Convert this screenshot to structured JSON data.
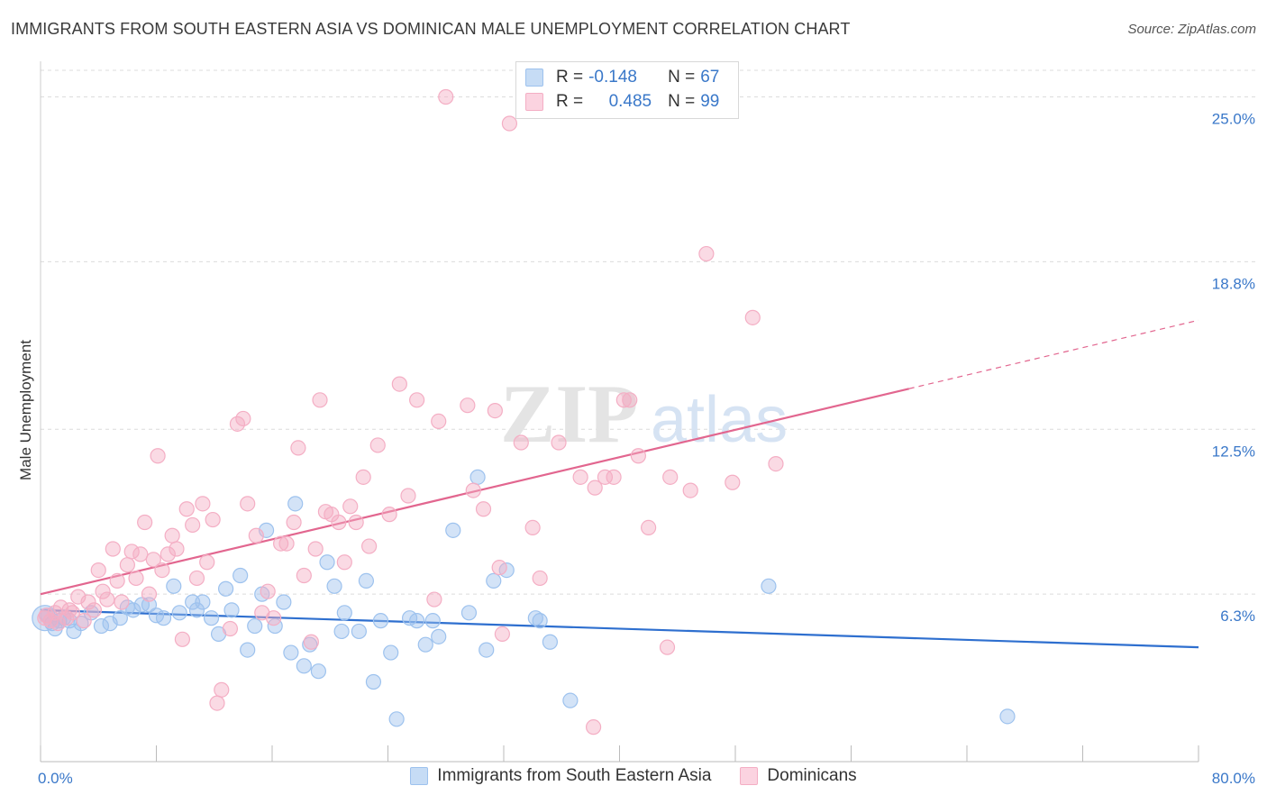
{
  "header": {
    "title": "IMMIGRANTS FROM SOUTH EASTERN ASIA VS DOMINICAN MALE UNEMPLOYMENT CORRELATION CHART",
    "source": "Source: ZipAtlas.com"
  },
  "watermark": {
    "zip": "ZIP",
    "atlas": "atlas"
  },
  "legend_stats": [
    {
      "r_label": "R =",
      "r_value": "-0.148",
      "n_label": "N =",
      "n_value": "67",
      "color": "#9dc2ee"
    },
    {
      "r_label": "R =",
      "r_value": "0.485",
      "n_label": "N =",
      "n_value": "99",
      "color": "#f4aec4"
    }
  ],
  "chart_data": {
    "type": "scatter",
    "title": "IMMIGRANTS FROM SOUTH EASTERN ASIA VS DOMINICAN MALE UNEMPLOYMENT CORRELATION CHART",
    "xlabel": "",
    "ylabel": "Male Unemployment",
    "xlim": [
      0,
      80
    ],
    "ylim": [
      0,
      26
    ],
    "x_tick_labels": [
      "0.0%",
      "80.0%"
    ],
    "y_ticks": [
      6.3,
      12.5,
      18.8,
      25.0
    ],
    "y_tick_labels": [
      "6.3%",
      "12.5%",
      "18.8%",
      "25.0%"
    ],
    "grid": true,
    "legend_position": "bottom",
    "series": [
      {
        "name": "Immigrants from South Eastern Asia",
        "color": "#9dc2ee",
        "line_color": "#2e6fcf",
        "trend": {
          "x": [
            0,
            80
          ],
          "y": [
            5.7,
            4.3
          ],
          "dashed_from": null
        },
        "points": [
          [
            0.5,
            5.5
          ],
          [
            0.8,
            5.2
          ],
          [
            1.0,
            5.0
          ],
          [
            1.3,
            5.3
          ],
          [
            1.6,
            5.4
          ],
          [
            2.0,
            5.3
          ],
          [
            2.3,
            4.9
          ],
          [
            2.8,
            5.2
          ],
          [
            3.5,
            5.6
          ],
          [
            4.2,
            5.1
          ],
          [
            4.8,
            5.2
          ],
          [
            5.5,
            5.4
          ],
          [
            6.0,
            5.8
          ],
          [
            6.4,
            5.7
          ],
          [
            7.0,
            5.9
          ],
          [
            7.5,
            5.9
          ],
          [
            8.0,
            5.5
          ],
          [
            8.5,
            5.4
          ],
          [
            9.2,
            6.6
          ],
          [
            9.6,
            5.6
          ],
          [
            10.5,
            6.0
          ],
          [
            10.8,
            5.7
          ],
          [
            11.2,
            6.0
          ],
          [
            11.8,
            5.4
          ],
          [
            12.3,
            4.8
          ],
          [
            12.8,
            6.5
          ],
          [
            13.2,
            5.7
          ],
          [
            13.8,
            7.0
          ],
          [
            14.3,
            4.2
          ],
          [
            14.8,
            5.1
          ],
          [
            15.3,
            6.3
          ],
          [
            15.6,
            8.7
          ],
          [
            16.2,
            5.1
          ],
          [
            16.8,
            6.0
          ],
          [
            17.3,
            4.1
          ],
          [
            17.6,
            9.7
          ],
          [
            18.2,
            3.6
          ],
          [
            18.6,
            4.4
          ],
          [
            19.2,
            3.4
          ],
          [
            19.8,
            7.5
          ],
          [
            20.3,
            6.6
          ],
          [
            20.8,
            4.9
          ],
          [
            21.0,
            5.6
          ],
          [
            22.0,
            4.9
          ],
          [
            22.5,
            6.8
          ],
          [
            23.0,
            3.0
          ],
          [
            23.5,
            5.3
          ],
          [
            24.2,
            4.1
          ],
          [
            24.6,
            1.6
          ],
          [
            25.5,
            5.4
          ],
          [
            26.0,
            5.3
          ],
          [
            26.6,
            4.4
          ],
          [
            27.1,
            5.3
          ],
          [
            27.5,
            4.7
          ],
          [
            28.5,
            8.7
          ],
          [
            29.6,
            5.6
          ],
          [
            30.2,
            10.7
          ],
          [
            30.8,
            4.2
          ],
          [
            31.3,
            6.8
          ],
          [
            32.2,
            7.2
          ],
          [
            34.2,
            5.4
          ],
          [
            34.5,
            5.3
          ],
          [
            35.2,
            4.5
          ],
          [
            36.6,
            2.3
          ],
          [
            50.3,
            6.6
          ],
          [
            66.8,
            1.7
          ],
          [
            0.3,
            5.4
          ]
        ]
      },
      {
        "name": "Dominicans",
        "color": "#f4aec4",
        "line_color": "#e2668f",
        "trend": {
          "x": [
            0,
            80
          ],
          "y": [
            6.3,
            16.6
          ],
          "dashed_from": 60
        },
        "points": [
          [
            0.4,
            5.5
          ],
          [
            0.7,
            5.3
          ],
          [
            1.0,
            5.6
          ],
          [
            1.4,
            5.8
          ],
          [
            1.8,
            5.4
          ],
          [
            2.2,
            5.6
          ],
          [
            2.6,
            6.2
          ],
          [
            3.0,
            5.3
          ],
          [
            3.3,
            6.0
          ],
          [
            3.7,
            5.7
          ],
          [
            4.0,
            7.2
          ],
          [
            4.3,
            6.4
          ],
          [
            4.6,
            6.1
          ],
          [
            5.0,
            8.0
          ],
          [
            5.3,
            6.8
          ],
          [
            5.6,
            6.0
          ],
          [
            6.0,
            7.4
          ],
          [
            6.3,
            7.9
          ],
          [
            6.6,
            6.9
          ],
          [
            6.9,
            7.8
          ],
          [
            7.2,
            9.0
          ],
          [
            7.5,
            6.3
          ],
          [
            7.8,
            7.6
          ],
          [
            8.1,
            11.5
          ],
          [
            8.4,
            7.2
          ],
          [
            8.8,
            7.8
          ],
          [
            9.1,
            8.5
          ],
          [
            9.4,
            8.0
          ],
          [
            9.8,
            4.6
          ],
          [
            10.1,
            9.5
          ],
          [
            10.5,
            8.9
          ],
          [
            10.8,
            6.9
          ],
          [
            11.2,
            9.7
          ],
          [
            11.5,
            7.5
          ],
          [
            11.9,
            9.1
          ],
          [
            12.5,
            2.7
          ],
          [
            12.2,
            2.2
          ],
          [
            13.1,
            5.0
          ],
          [
            13.6,
            12.7
          ],
          [
            14.0,
            12.9
          ],
          [
            14.3,
            9.7
          ],
          [
            14.9,
            8.5
          ],
          [
            15.3,
            5.6
          ],
          [
            15.7,
            6.4
          ],
          [
            16.1,
            5.4
          ],
          [
            16.6,
            8.2
          ],
          [
            17.0,
            8.2
          ],
          [
            17.5,
            9.0
          ],
          [
            17.8,
            11.8
          ],
          [
            18.2,
            7.0
          ],
          [
            18.7,
            4.5
          ],
          [
            19.0,
            8.0
          ],
          [
            19.3,
            13.6
          ],
          [
            19.7,
            9.4
          ],
          [
            20.1,
            9.3
          ],
          [
            20.6,
            9.0
          ],
          [
            21.0,
            7.5
          ],
          [
            21.4,
            9.6
          ],
          [
            21.8,
            9.0
          ],
          [
            22.3,
            10.7
          ],
          [
            22.7,
            8.1
          ],
          [
            23.3,
            11.9
          ],
          [
            24.1,
            9.3
          ],
          [
            24.8,
            14.2
          ],
          [
            25.4,
            10.0
          ],
          [
            26.0,
            13.6
          ],
          [
            27.2,
            6.1
          ],
          [
            27.5,
            12.8
          ],
          [
            28.0,
            25.0
          ],
          [
            29.5,
            13.4
          ],
          [
            29.9,
            10.2
          ],
          [
            30.6,
            9.5
          ],
          [
            31.4,
            13.2
          ],
          [
            31.7,
            7.3
          ],
          [
            31.9,
            4.8
          ],
          [
            32.4,
            24.0
          ],
          [
            33.2,
            12.0
          ],
          [
            34.0,
            8.8
          ],
          [
            34.5,
            6.9
          ],
          [
            37.3,
            10.7
          ],
          [
            38.3,
            10.3
          ],
          [
            39.0,
            10.7
          ],
          [
            39.6,
            10.7
          ],
          [
            40.3,
            13.6
          ],
          [
            41.3,
            11.5
          ],
          [
            42.0,
            8.8
          ],
          [
            43.5,
            10.7
          ],
          [
            44.9,
            10.2
          ],
          [
            46.0,
            19.1
          ],
          [
            47.8,
            10.5
          ],
          [
            43.3,
            4.3
          ],
          [
            38.2,
            1.3
          ],
          [
            50.8,
            11.2
          ],
          [
            49.2,
            16.7
          ],
          [
            35.8,
            12.0
          ],
          [
            40.7,
            13.6
          ],
          [
            0.3,
            5.4
          ],
          [
            2.0,
            5.7
          ],
          [
            1.2,
            5.2
          ]
        ]
      }
    ]
  }
}
